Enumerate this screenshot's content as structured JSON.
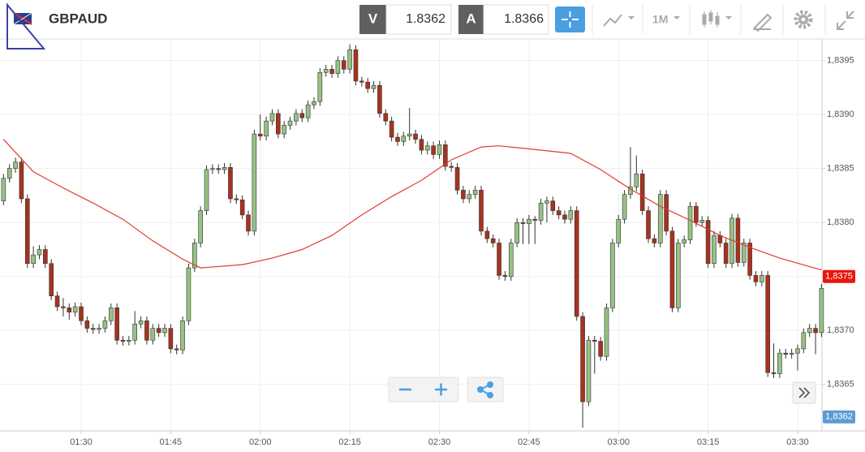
{
  "toolbar": {
    "symbol": "GBPAUD",
    "bid_letter": "V",
    "bid": "1.8362",
    "ask_letter": "A",
    "ask": "1.8366",
    "timeframe": "1M"
  },
  "chart_data": {
    "type": "candlestick",
    "up_color": "#96c283",
    "down_color": "#a8321e",
    "grid": true,
    "xlim": [
      -0.59,
      137.08
    ],
    "xticks": [
      {
        "value": 13,
        "label": "01:30"
      },
      {
        "value": 28,
        "label": "01:45"
      },
      {
        "value": 43,
        "label": "02:00"
      },
      {
        "value": 58,
        "label": "02:15"
      },
      {
        "value": 73,
        "label": "02:30"
      },
      {
        "value": 88,
        "label": "02:45"
      },
      {
        "value": 103,
        "label": "03:00"
      },
      {
        "value": 118,
        "label": "03:15"
      },
      {
        "value": 133,
        "label": "03:30"
      }
    ],
    "ylim": [
      1.83607,
      1.8397
    ],
    "yticks": [
      {
        "value": 1.8365,
        "label": "1,8365"
      },
      {
        "value": 1.837,
        "label": "1,8370"
      },
      {
        "value": 1.8375,
        "label": "1,8375"
      },
      {
        "value": 1.838,
        "label": "1,8380"
      },
      {
        "value": 1.8385,
        "label": "1,8385"
      },
      {
        "value": 1.839,
        "label": "1,8390"
      },
      {
        "value": 1.8395,
        "label": "1,8395"
      }
    ],
    "price_markers": [
      {
        "value": 1.8375,
        "label": "1,8375",
        "color": "#e8160c"
      },
      {
        "value": 1.8362,
        "label": "1,8362",
        "color": "#5b9bd5"
      }
    ],
    "candles": {
      "open": [
        1.8382,
        1.83841,
        1.8385,
        1.83856,
        1.83822,
        1.83762,
        1.8377,
        1.83775,
        1.83762,
        1.83732,
        1.83722,
        1.83721,
        1.83717,
        1.83722,
        1.83709,
        1.83702,
        1.83701,
        1.83702,
        1.83709,
        1.83721,
        1.83691,
        1.8369,
        1.83691,
        1.83706,
        1.83709,
        1.83691,
        1.83702,
        1.83698,
        1.83702,
        1.83683,
        1.83682,
        1.83709,
        1.83758,
        1.83781,
        1.83811,
        1.83849,
        1.8385,
        1.83849,
        1.83851,
        1.83822,
        1.83821,
        1.83807,
        1.83792,
        1.83882,
        1.8388,
        1.83894,
        1.83901,
        1.83882,
        1.8389,
        1.83894,
        1.83901,
        1.83897,
        1.83909,
        1.83912,
        1.83939,
        1.83942,
        1.83938,
        1.8395,
        1.83942,
        1.8396,
        1.83931,
        1.8393,
        1.83924,
        1.83927,
        1.83901,
        1.83894,
        1.83879,
        1.83875,
        1.8388,
        1.83882,
        1.83877,
        1.83867,
        1.83871,
        1.83863,
        1.83872,
        1.83852,
        1.83851,
        1.8383,
        1.83822,
        1.83826,
        1.8383,
        1.83792,
        1.83785,
        1.83781,
        1.83751,
        1.8375,
        1.83781,
        1.838,
        1.83799,
        1.83803,
        1.83802,
        1.83818,
        1.8382,
        1.83811,
        1.83807,
        1.83803,
        1.83811,
        1.83713,
        1.83634,
        1.83691,
        1.8369,
        1.83676,
        1.83721,
        1.83781,
        1.83803,
        1.83826,
        1.83833,
        1.83845,
        1.83811,
        1.83785,
        1.83781,
        1.83826,
        1.83792,
        1.83721,
        1.83781,
        1.83784,
        1.83815,
        1.838,
        1.83802,
        1.83762,
        1.83788,
        1.83781,
        1.83762,
        1.83804,
        1.83763,
        1.83781,
        1.83751,
        1.83745,
        1.83751,
        1.83661,
        1.8366,
        1.83679,
        1.83678,
        1.83679,
        1.83683,
        1.83698,
        1.83702,
        1.83698
      ],
      "high": [
        1.83845,
        1.83854,
        1.8386,
        1.8386,
        1.83826,
        1.83778,
        1.83779,
        1.83779,
        1.83766,
        1.83736,
        1.8373,
        1.83725,
        1.83726,
        1.83726,
        1.83713,
        1.83706,
        1.83706,
        1.83713,
        1.83725,
        1.83725,
        1.83695,
        1.83695,
        1.83718,
        1.83713,
        1.83713,
        1.83706,
        1.83706,
        1.83706,
        1.83706,
        1.83687,
        1.83713,
        1.83762,
        1.83785,
        1.83815,
        1.83853,
        1.83854,
        1.83854,
        1.83855,
        1.83855,
        1.83826,
        1.83825,
        1.83811,
        1.83886,
        1.839,
        1.83898,
        1.83905,
        1.83905,
        1.83894,
        1.83898,
        1.83905,
        1.83905,
        1.83913,
        1.83916,
        1.83943,
        1.83946,
        1.83946,
        1.83954,
        1.83954,
        1.83965,
        1.83964,
        1.83935,
        1.83934,
        1.83931,
        1.83931,
        1.83905,
        1.83898,
        1.83883,
        1.83884,
        1.83906,
        1.83886,
        1.83881,
        1.83875,
        1.83875,
        1.83876,
        1.83876,
        1.83856,
        1.83855,
        1.83834,
        1.8383,
        1.83834,
        1.83834,
        1.83796,
        1.83789,
        1.83785,
        1.83755,
        1.83785,
        1.83804,
        1.83804,
        1.83807,
        1.83806,
        1.83822,
        1.83824,
        1.83824,
        1.83815,
        1.83811,
        1.83815,
        1.83815,
        1.83717,
        1.83695,
        1.83695,
        1.83694,
        1.83725,
        1.83785,
        1.83807,
        1.8383,
        1.8387,
        1.83862,
        1.83849,
        1.83815,
        1.83789,
        1.8383,
        1.8383,
        1.83796,
        1.83785,
        1.83788,
        1.83819,
        1.83819,
        1.83806,
        1.83806,
        1.83792,
        1.83792,
        1.83785,
        1.83808,
        1.83808,
        1.83785,
        1.83785,
        1.83755,
        1.83755,
        1.83755,
        1.83688,
        1.83683,
        1.83683,
        1.83683,
        1.83687,
        1.83702,
        1.83706,
        1.83706,
        1.83743
      ],
      "low": [
        1.83816,
        1.83837,
        1.83846,
        1.83818,
        1.83758,
        1.83758,
        1.83766,
        1.83758,
        1.83728,
        1.83718,
        1.83713,
        1.8371,
        1.83713,
        1.83705,
        1.83698,
        1.83697,
        1.83697,
        1.83698,
        1.83705,
        1.83687,
        1.83686,
        1.83686,
        1.83687,
        1.83702,
        1.83687,
        1.83687,
        1.83694,
        1.83694,
        1.83679,
        1.83678,
        1.83678,
        1.83705,
        1.83754,
        1.83777,
        1.83807,
        1.83845,
        1.83845,
        1.83845,
        1.83818,
        1.83817,
        1.83803,
        1.83788,
        1.83788,
        1.83876,
        1.83876,
        1.8389,
        1.83878,
        1.83878,
        1.83886,
        1.8389,
        1.83893,
        1.83893,
        1.83905,
        1.83908,
        1.83935,
        1.83934,
        1.83934,
        1.83938,
        1.83938,
        1.83927,
        1.83926,
        1.8392,
        1.8392,
        1.83897,
        1.8389,
        1.83875,
        1.83871,
        1.83871,
        1.83876,
        1.83873,
        1.83863,
        1.83863,
        1.83859,
        1.83859,
        1.83848,
        1.83847,
        1.83826,
        1.83818,
        1.83818,
        1.83822,
        1.83788,
        1.83781,
        1.83777,
        1.83747,
        1.83746,
        1.83746,
        1.83777,
        1.8378,
        1.8378,
        1.8378,
        1.83798,
        1.838,
        1.83807,
        1.83803,
        1.83799,
        1.83799,
        1.83709,
        1.8361,
        1.8363,
        1.8366,
        1.83672,
        1.83672,
        1.83717,
        1.83777,
        1.83799,
        1.83822,
        1.83829,
        1.83807,
        1.83781,
        1.83777,
        1.83777,
        1.83788,
        1.83717,
        1.83717,
        1.83777,
        1.8378,
        1.83796,
        1.83796,
        1.83758,
        1.83758,
        1.83777,
        1.83758,
        1.83758,
        1.83759,
        1.83759,
        1.83747,
        1.83741,
        1.83741,
        1.83657,
        1.83656,
        1.83656,
        1.83674,
        1.83674,
        1.83663,
        1.83679,
        1.83694,
        1.83678,
        1.83694
      ],
      "close": [
        1.83841,
        1.8385,
        1.83856,
        1.83822,
        1.83762,
        1.8377,
        1.83775,
        1.83762,
        1.83732,
        1.83722,
        1.83721,
        1.83717,
        1.83722,
        1.83709,
        1.83702,
        1.83701,
        1.83702,
        1.83709,
        1.83721,
        1.83691,
        1.8369,
        1.83691,
        1.83706,
        1.83709,
        1.83691,
        1.83702,
        1.83698,
        1.83702,
        1.83683,
        1.83682,
        1.83709,
        1.83758,
        1.83781,
        1.83811,
        1.83849,
        1.8385,
        1.83849,
        1.83851,
        1.83822,
        1.83821,
        1.83807,
        1.83792,
        1.83882,
        1.8388,
        1.83894,
        1.83901,
        1.83882,
        1.8389,
        1.83894,
        1.83901,
        1.83897,
        1.83909,
        1.83912,
        1.83939,
        1.83942,
        1.83938,
        1.8395,
        1.83942,
        1.8396,
        1.83931,
        1.8393,
        1.83924,
        1.83927,
        1.83901,
        1.83894,
        1.83879,
        1.83875,
        1.8388,
        1.83882,
        1.83877,
        1.83867,
        1.83871,
        1.83863,
        1.83872,
        1.83852,
        1.83851,
        1.8383,
        1.83822,
        1.83826,
        1.8383,
        1.83792,
        1.83785,
        1.83781,
        1.83751,
        1.8375,
        1.83781,
        1.838,
        1.83799,
        1.83803,
        1.83802,
        1.83818,
        1.8382,
        1.83811,
        1.83807,
        1.83803,
        1.83811,
        1.83713,
        1.83634,
        1.83691,
        1.8369,
        1.83676,
        1.83721,
        1.83781,
        1.83803,
        1.83826,
        1.83833,
        1.83845,
        1.83811,
        1.83785,
        1.83781,
        1.83826,
        1.83792,
        1.83721,
        1.83781,
        1.83784,
        1.83815,
        1.838,
        1.83802,
        1.83762,
        1.83788,
        1.83781,
        1.83762,
        1.83804,
        1.83763,
        1.83781,
        1.83751,
        1.83745,
        1.83751,
        1.83661,
        1.8366,
        1.83679,
        1.83678,
        1.83679,
        1.83683,
        1.83698,
        1.83702,
        1.83698,
        1.83739
      ]
    },
    "moving_average": {
      "color": "#e03a2f",
      "x": [
        0,
        5,
        10,
        15,
        20,
        25,
        30,
        33,
        40,
        45,
        50,
        55,
        60,
        65,
        70,
        75,
        80,
        83,
        90,
        95,
        100,
        105,
        110,
        115,
        120,
        125,
        130,
        137
      ],
      "values": [
        1.83877,
        1.83847,
        1.83832,
        1.83818,
        1.83803,
        1.83783,
        1.83766,
        1.83758,
        1.83761,
        1.83767,
        1.83775,
        1.83788,
        1.83807,
        1.83824,
        1.83839,
        1.83858,
        1.8387,
        1.83871,
        1.83867,
        1.83864,
        1.83849,
        1.83831,
        1.83815,
        1.83802,
        1.83788,
        1.83777,
        1.83767,
        1.83756
      ]
    }
  }
}
